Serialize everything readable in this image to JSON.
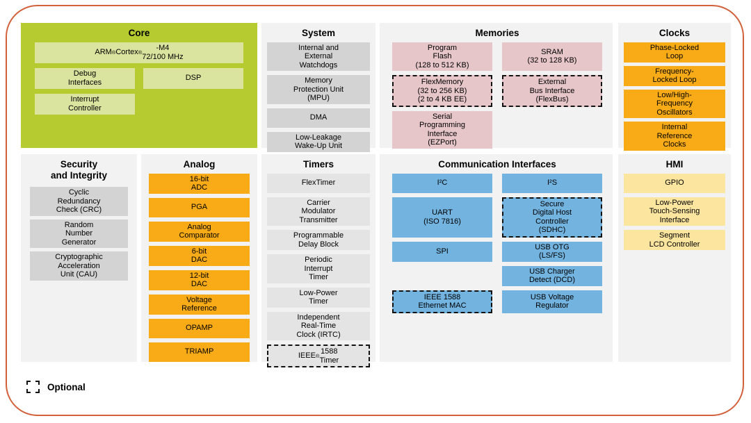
{
  "colors": {
    "frame_border": "#d2603a",
    "panel_bg": "#f2f2f2",
    "core_bg": "#b6cb30",
    "core_block": "#dbe49e",
    "gray_block": "#d3d3d3",
    "timer_block": "#e4e4e4",
    "pink_block": "#e7c6ca",
    "orange_block": "#f9ab17",
    "blue_block": "#72b3df",
    "yellow_block": "#fbe59f",
    "text": "#000000"
  },
  "legend": {
    "label": "Optional"
  },
  "sections": {
    "core": {
      "title": [
        "Core"
      ],
      "rows": [
        [
          {
            "lines": [
              "ARM® Cortex®-M4",
              "72/100 MHz"
            ]
          }
        ],
        [
          {
            "lines": [
              "Debug",
              "Interfaces"
            ]
          },
          {
            "lines": [
              "DSP"
            ]
          }
        ],
        [
          {
            "lines": [
              "Interrupt",
              "Controller"
            ]
          },
          null
        ]
      ]
    },
    "system": {
      "title": [
        "System"
      ],
      "rows": [
        [
          {
            "lines": [
              "Internal and",
              "External",
              "Watchdogs"
            ]
          }
        ],
        [
          {
            "lines": [
              "Memory",
              "Protection Unit",
              "(MPU)"
            ]
          }
        ],
        [
          {
            "lines": [
              "DMA"
            ]
          }
        ],
        [
          {
            "lines": [
              "Low-Leakage",
              "Wake-Up Unit"
            ]
          }
        ]
      ]
    },
    "memories": {
      "title": [
        "Memories"
      ],
      "rows": [
        [
          {
            "lines": [
              "Program",
              "Flash",
              "(128 to 512 KB)"
            ]
          },
          {
            "lines": [
              "SRAM",
              "(32 to 128 KB)"
            ]
          }
        ],
        [
          {
            "lines": [
              "FlexMemory",
              "(32 to 256 KB)",
              "(2 to 4 KB EE)"
            ],
            "optional": true
          },
          {
            "lines": [
              "External",
              "Bus Interface",
              "(FlexBus)"
            ],
            "optional": true
          }
        ],
        [
          {
            "lines": [
              "Serial",
              "Programming",
              "Interface",
              "(EZPort)"
            ]
          },
          null
        ]
      ]
    },
    "clocks": {
      "title": [
        "Clocks"
      ],
      "rows": [
        [
          {
            "lines": [
              "Phase-Locked",
              "Loop"
            ]
          }
        ],
        [
          {
            "lines": [
              "Frequency-",
              "Locked Loop"
            ]
          }
        ],
        [
          {
            "lines": [
              "Low/High-",
              "Frequency",
              "Oscillators"
            ]
          }
        ],
        [
          {
            "lines": [
              "Internal",
              "Reference",
              "Clocks"
            ]
          }
        ]
      ]
    },
    "security": {
      "title": [
        "Security",
        "and Integrity"
      ],
      "rows": [
        [
          {
            "lines": [
              "Cyclic",
              "Redundancy",
              "Check (CRC)"
            ]
          }
        ],
        [
          {
            "lines": [
              "Random",
              "Number",
              "Generator"
            ]
          }
        ],
        [
          {
            "lines": [
              "Cryptographic",
              "Acceleration",
              "Unit (CAU)"
            ]
          }
        ]
      ]
    },
    "analog": {
      "title": [
        "Analog"
      ],
      "rows": [
        [
          {
            "lines": [
              "16-bit",
              "ADC"
            ]
          }
        ],
        [
          {
            "lines": [
              "PGA"
            ]
          }
        ],
        [
          {
            "lines": [
              "Analog",
              "Comparator"
            ]
          }
        ],
        [
          {
            "lines": [
              "6-bit",
              "DAC"
            ]
          }
        ],
        [
          {
            "lines": [
              "12-bit",
              "DAC"
            ]
          }
        ],
        [
          {
            "lines": [
              "Voltage",
              "Reference"
            ]
          }
        ],
        [
          {
            "lines": [
              "OPAMP"
            ]
          }
        ],
        [
          {
            "lines": [
              "TRIAMP"
            ]
          }
        ]
      ]
    },
    "timers": {
      "title": [
        "Timers"
      ],
      "rows": [
        [
          {
            "lines": [
              "FlexTimer"
            ]
          }
        ],
        [
          {
            "lines": [
              "Carrier",
              "Modulator",
              "Transmitter"
            ]
          }
        ],
        [
          {
            "lines": [
              "Programmable",
              "Delay Block"
            ]
          }
        ],
        [
          {
            "lines": [
              "Periodic",
              "Interrupt",
              "Timer"
            ]
          }
        ],
        [
          {
            "lines": [
              "Low-Power",
              "Timer"
            ]
          }
        ],
        [
          {
            "lines": [
              "Independent",
              "Real-Time",
              "Clock (IRTC)"
            ]
          }
        ],
        [
          {
            "lines": [
              "IEEE® 1588",
              "Timer"
            ],
            "optional": true
          }
        ]
      ]
    },
    "comm": {
      "title": [
        "Communication Interfaces"
      ],
      "rows": [
        [
          {
            "lines": [
              "I²C"
            ]
          },
          {
            "lines": [
              "I²S"
            ]
          }
        ],
        [
          {
            "lines": [
              "UART",
              "(ISO 7816)"
            ]
          },
          {
            "lines": [
              "Secure",
              "Digital Host",
              "Controller",
              "(SDHC)"
            ],
            "optional": true
          }
        ],
        [
          {
            "lines": [
              "SPI"
            ]
          },
          {
            "lines": [
              "USB OTG",
              "(LS/FS)"
            ]
          }
        ],
        [
          null,
          {
            "lines": [
              "USB Charger",
              "Detect (DCD)"
            ]
          }
        ],
        [
          {
            "lines": [
              "IEEE 1588",
              "Ethernet MAC"
            ],
            "optional": true
          },
          {
            "lines": [
              "USB Voltage",
              "Regulator"
            ]
          }
        ]
      ]
    },
    "hmi": {
      "title": [
        "HMI"
      ],
      "rows": [
        [
          {
            "lines": [
              "GPIO"
            ]
          }
        ],
        [
          {
            "lines": [
              "Low-Power",
              "Touch-Sensing",
              "Interface"
            ]
          }
        ],
        [
          {
            "lines": [
              "Segment",
              "LCD Controller"
            ]
          }
        ]
      ]
    }
  }
}
